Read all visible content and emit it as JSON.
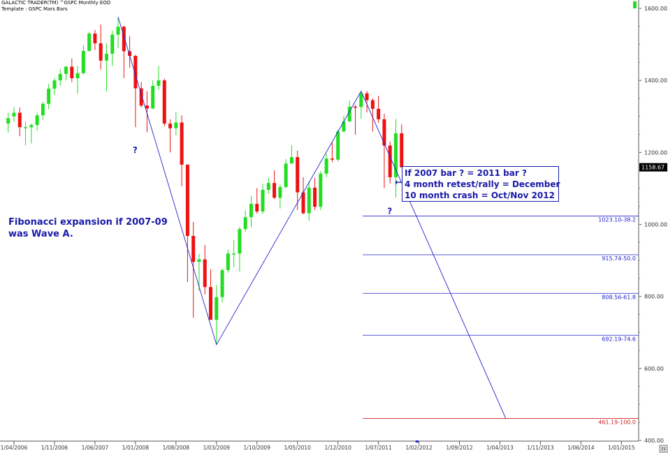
{
  "header": {
    "line1": "GALACTIC TRADER(TM)    ^GSPC Monthly EOD",
    "line2": "Template : GSPC Mars Bars"
  },
  "annotations": {
    "wave_note": [
      "Fibonacci expansion if 2007-09",
      "was Wave A."
    ],
    "box_lines": [
      "If 2007 bar ? = 2011 bar ?",
      "4 month retest/rally = December",
      "10 month crash = Oct/Nov 2012"
    ],
    "arrow": "←",
    "question_marks": [
      {
        "text": "?",
        "date": "2008-01",
        "price": 1230
      },
      {
        "text": "?",
        "date": "2011-09",
        "price": 1060
      }
    ]
  },
  "chart_data": {
    "type": "candlestick",
    "title": "",
    "xlabel": "",
    "ylabel": "",
    "yaxis_side": "right",
    "ylim": [
      400,
      1600
    ],
    "y_ticks": [
      "400.00",
      "600.00",
      "800.00",
      "1000.00",
      "1200.00",
      "1400.00",
      "1600.00"
    ],
    "y_tick_values": [
      400,
      600,
      800,
      1000,
      1200,
      1400,
      1600
    ],
    "x_start": "2006-03",
    "x_end": "2015-08",
    "x_ticks": [
      {
        "label": "1/04/2006",
        "date": "2006-04"
      },
      {
        "label": "1/11/2006",
        "date": "2006-11"
      },
      {
        "label": "1/06/2007",
        "date": "2007-06"
      },
      {
        "label": "1/01/2008",
        "date": "2008-01"
      },
      {
        "label": "1/08/2008",
        "date": "2008-08"
      },
      {
        "label": "1/03/2009",
        "date": "2009-03"
      },
      {
        "label": "1/10/2009",
        "date": "2009-10"
      },
      {
        "label": "1/05/2010",
        "date": "2010-05"
      },
      {
        "label": "1/12/2010",
        "date": "2010-12"
      },
      {
        "label": "1/07/2011",
        "date": "2011-07"
      },
      {
        "label": "1/02/2012",
        "date": "2012-02"
      },
      {
        "label": "1/09/2012",
        "date": "2012-09"
      },
      {
        "label": "1/04/2013",
        "date": "2013-04"
      },
      {
        "label": "1/11/2013",
        "date": "2013-11"
      },
      {
        "label": "1/06/2014",
        "date": "2014-06"
      },
      {
        "label": "1/01/2015",
        "date": "2015-01"
      }
    ],
    "last_price_label": "1158.67",
    "last_price": 1158.67,
    "up_color": "#22dd22",
    "down_color": "#ee1111",
    "line_color": "#2222cc",
    "fib_color": "#2222cc",
    "fib_100_color": "#cc2222",
    "candles": [
      {
        "date": "2006-03",
        "open": 1280,
        "high": 1310,
        "low": 1255,
        "close": 1295
      },
      {
        "date": "2006-04",
        "open": 1300,
        "high": 1326,
        "low": 1285,
        "close": 1310
      },
      {
        "date": "2006-05",
        "open": 1310,
        "high": 1325,
        "low": 1245,
        "close": 1270
      },
      {
        "date": "2006-06",
        "open": 1270,
        "high": 1285,
        "low": 1220,
        "close": 1270
      },
      {
        "date": "2006-07",
        "open": 1270,
        "high": 1280,
        "low": 1225,
        "close": 1276
      },
      {
        "date": "2006-08",
        "open": 1276,
        "high": 1310,
        "low": 1260,
        "close": 1303
      },
      {
        "date": "2006-09",
        "open": 1303,
        "high": 1340,
        "low": 1290,
        "close": 1335
      },
      {
        "date": "2006-10",
        "open": 1335,
        "high": 1390,
        "low": 1320,
        "close": 1377
      },
      {
        "date": "2006-11",
        "open": 1377,
        "high": 1407,
        "low": 1360,
        "close": 1400
      },
      {
        "date": "2006-12",
        "open": 1400,
        "high": 1432,
        "low": 1385,
        "close": 1418
      },
      {
        "date": "2007-01",
        "open": 1418,
        "high": 1440,
        "low": 1400,
        "close": 1438
      },
      {
        "date": "2007-02",
        "open": 1438,
        "high": 1461,
        "low": 1395,
        "close": 1406
      },
      {
        "date": "2007-03",
        "open": 1406,
        "high": 1440,
        "low": 1363,
        "close": 1420
      },
      {
        "date": "2007-04",
        "open": 1420,
        "high": 1498,
        "low": 1416,
        "close": 1482
      },
      {
        "date": "2007-05",
        "open": 1482,
        "high": 1535,
        "low": 1480,
        "close": 1530
      },
      {
        "date": "2007-06",
        "open": 1530,
        "high": 1540,
        "low": 1484,
        "close": 1503
      },
      {
        "date": "2007-07",
        "open": 1503,
        "high": 1555,
        "low": 1430,
        "close": 1455
      },
      {
        "date": "2007-08",
        "open": 1455,
        "high": 1503,
        "low": 1370,
        "close": 1474
      },
      {
        "date": "2007-09",
        "open": 1474,
        "high": 1538,
        "low": 1440,
        "close": 1527
      },
      {
        "date": "2007-10",
        "open": 1527,
        "high": 1576,
        "low": 1490,
        "close": 1549
      },
      {
        "date": "2007-11",
        "open": 1549,
        "high": 1552,
        "low": 1406,
        "close": 1481
      },
      {
        "date": "2007-12",
        "open": 1481,
        "high": 1523,
        "low": 1435,
        "close": 1468
      },
      {
        "date": "2008-01",
        "open": 1468,
        "high": 1471,
        "low": 1270,
        "close": 1378
      },
      {
        "date": "2008-02",
        "open": 1378,
        "high": 1396,
        "low": 1325,
        "close": 1330
      },
      {
        "date": "2008-03",
        "open": 1330,
        "high": 1370,
        "low": 1256,
        "close": 1322
      },
      {
        "date": "2008-04",
        "open": 1322,
        "high": 1400,
        "low": 1320,
        "close": 1385
      },
      {
        "date": "2008-05",
        "open": 1385,
        "high": 1440,
        "low": 1373,
        "close": 1400
      },
      {
        "date": "2008-06",
        "open": 1400,
        "high": 1405,
        "low": 1272,
        "close": 1280
      },
      {
        "date": "2008-07",
        "open": 1280,
        "high": 1292,
        "low": 1200,
        "close": 1267
      },
      {
        "date": "2008-08",
        "open": 1267,
        "high": 1313,
        "low": 1247,
        "close": 1283
      },
      {
        "date": "2008-09",
        "open": 1283,
        "high": 1303,
        "low": 1106,
        "close": 1166
      },
      {
        "date": "2008-10",
        "open": 1166,
        "high": 1167,
        "low": 840,
        "close": 968
      },
      {
        "date": "2008-11",
        "open": 968,
        "high": 1007,
        "low": 741,
        "close": 896
      },
      {
        "date": "2008-12",
        "open": 896,
        "high": 918,
        "low": 815,
        "close": 903
      },
      {
        "date": "2009-01",
        "open": 903,
        "high": 943,
        "low": 805,
        "close": 826
      },
      {
        "date": "2009-02",
        "open": 826,
        "high": 875,
        "low": 735,
        "close": 735
      },
      {
        "date": "2009-03",
        "open": 735,
        "high": 832,
        "low": 666,
        "close": 798
      },
      {
        "date": "2009-04",
        "open": 798,
        "high": 877,
        "low": 783,
        "close": 873
      },
      {
        "date": "2009-05",
        "open": 873,
        "high": 930,
        "low": 866,
        "close": 919
      },
      {
        "date": "2009-06",
        "open": 919,
        "high": 956,
        "low": 881,
        "close": 919
      },
      {
        "date": "2009-07",
        "open": 919,
        "high": 993,
        "low": 869,
        "close": 987
      },
      {
        "date": "2009-08",
        "open": 987,
        "high": 1039,
        "low": 979,
        "close": 1020
      },
      {
        "date": "2009-09",
        "open": 1020,
        "high": 1080,
        "low": 992,
        "close": 1057
      },
      {
        "date": "2009-10",
        "open": 1057,
        "high": 1101,
        "low": 1030,
        "close": 1036
      },
      {
        "date": "2009-11",
        "open": 1036,
        "high": 1113,
        "low": 1029,
        "close": 1096
      },
      {
        "date": "2009-12",
        "open": 1096,
        "high": 1130,
        "low": 1085,
        "close": 1115
      },
      {
        "date": "2010-01",
        "open": 1115,
        "high": 1150,
        "low": 1071,
        "close": 1074
      },
      {
        "date": "2010-02",
        "open": 1074,
        "high": 1112,
        "low": 1044,
        "close": 1104
      },
      {
        "date": "2010-03",
        "open": 1104,
        "high": 1181,
        "low": 1101,
        "close": 1169
      },
      {
        "date": "2010-04",
        "open": 1169,
        "high": 1220,
        "low": 1170,
        "close": 1187
      },
      {
        "date": "2010-05",
        "open": 1187,
        "high": 1205,
        "low": 1040,
        "close": 1089
      },
      {
        "date": "2010-06",
        "open": 1089,
        "high": 1131,
        "low": 1028,
        "close": 1031
      },
      {
        "date": "2010-07",
        "open": 1031,
        "high": 1120,
        "low": 1010,
        "close": 1102
      },
      {
        "date": "2010-08",
        "open": 1102,
        "high": 1129,
        "low": 1040,
        "close": 1049
      },
      {
        "date": "2010-09",
        "open": 1049,
        "high": 1148,
        "low": 1040,
        "close": 1141
      },
      {
        "date": "2010-10",
        "open": 1141,
        "high": 1196,
        "low": 1131,
        "close": 1183
      },
      {
        "date": "2010-11",
        "open": 1183,
        "high": 1227,
        "low": 1173,
        "close": 1180
      },
      {
        "date": "2010-12",
        "open": 1180,
        "high": 1263,
        "low": 1175,
        "close": 1258
      },
      {
        "date": "2011-01",
        "open": 1258,
        "high": 1302,
        "low": 1257,
        "close": 1286
      },
      {
        "date": "2011-02",
        "open": 1286,
        "high": 1344,
        "low": 1289,
        "close": 1327
      },
      {
        "date": "2011-03",
        "open": 1327,
        "high": 1332,
        "low": 1249,
        "close": 1326
      },
      {
        "date": "2011-04",
        "open": 1326,
        "high": 1370,
        "low": 1294,
        "close": 1364
      },
      {
        "date": "2011-05",
        "open": 1364,
        "high": 1371,
        "low": 1311,
        "close": 1345
      },
      {
        "date": "2011-06",
        "open": 1345,
        "high": 1350,
        "low": 1258,
        "close": 1321
      },
      {
        "date": "2011-07",
        "open": 1321,
        "high": 1357,
        "low": 1282,
        "close": 1292
      },
      {
        "date": "2011-08",
        "open": 1292,
        "high": 1307,
        "low": 1101,
        "close": 1219
      },
      {
        "date": "2011-09",
        "open": 1219,
        "high": 1230,
        "low": 1114,
        "close": 1131
      },
      {
        "date": "2011-10",
        "open": 1131,
        "high": 1293,
        "low": 1075,
        "close": 1253
      },
      {
        "date": "2011-11",
        "open": 1253,
        "high": 1278,
        "low": 1158,
        "close": 1158.67
      }
    ],
    "wave_line": [
      {
        "date": "2007-10",
        "price": 1576
      },
      {
        "date": "2009-03",
        "price": 666
      },
      {
        "date": "2011-04",
        "price": 1370
      },
      {
        "date": "2013-05",
        "price": 461.19
      }
    ],
    "fib_levels": [
      {
        "label": "1023.10-38.2",
        "price": 1023.1
      },
      {
        "label": "915.74-50.0",
        "price": 915.74
      },
      {
        "label": "808.56-61.8",
        "price": 808.56
      },
      {
        "label": "692.19-74.6",
        "price": 692.19
      },
      {
        "label": "461.19-100.0",
        "price": 461.19
      }
    ],
    "fib_start_date": "2011-05"
  },
  "corner_labels": {
    "bottom_right": "TF"
  }
}
